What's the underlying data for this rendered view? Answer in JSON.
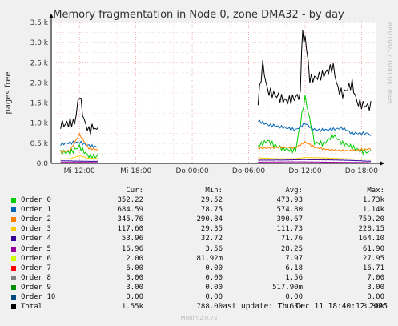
{
  "chart_data": {
    "type": "line",
    "title": "Memory fragmentation in Node 0, zone DMA32 - by day",
    "ylabel": "pages free",
    "side_label": "RRDTOOL / TOBI OETIKER",
    "ylim": [
      0,
      3500
    ],
    "y_ticks": [
      {
        "value": 0,
        "label": "0.0"
      },
      {
        "value": 500,
        "label": "0.5 k"
      },
      {
        "value": 1000,
        "label": "1.0 k"
      },
      {
        "value": 1500,
        "label": "1.5 k"
      },
      {
        "value": 2000,
        "label": "2.0 k"
      },
      {
        "value": 2500,
        "label": "2.5 k"
      },
      {
        "value": 3000,
        "label": "3.0 k"
      },
      {
        "value": 3500,
        "label": "3.5 k"
      }
    ],
    "xlim": [
      "Dec 10 09:00",
      "Dec 11 19:30"
    ],
    "x_ticks": [
      {
        "value": "Dec 10 12:00",
        "label": "Mi 12:00"
      },
      {
        "value": "Dec 10 18:00",
        "label": "Mi 18:00"
      },
      {
        "value": "Dec 11 00:00",
        "label": "Do 00:00"
      },
      {
        "value": "Dec 11 06:00",
        "label": "Do 06:00"
      },
      {
        "value": "Dec 11 12:00",
        "label": "Do 12:00"
      },
      {
        "value": "Dec 11 18:00",
        "label": "Do 18:00"
      }
    ],
    "gaps": [
      [
        "Dec 10 14:00",
        "Dec 11 07:00"
      ]
    ],
    "series": [
      {
        "name": "Order 0",
        "color": "#00cc00",
        "x": [
          "Dec 10 10:00",
          "Dec 10 11:00",
          "Dec 10 12:00",
          "Dec 10 13:00",
          "Dec 10 14:00",
          "Dec 11 07:00",
          "Dec 11 08:00",
          "Dec 11 09:00",
          "Dec 11 10:00",
          "Dec 11 11:00",
          "Dec 11 12:00",
          "Dec 11 13:00",
          "Dec 11 14:00",
          "Dec 11 15:00",
          "Dec 11 16:00",
          "Dec 11 17:00",
          "Dec 11 18:00",
          "Dec 11 19:00"
        ],
        "values": [
          250,
          300,
          500,
          280,
          260,
          400,
          600,
          500,
          450,
          420,
          1700,
          500,
          420,
          600,
          400,
          350,
          300,
          330
        ]
      },
      {
        "name": "Order 1",
        "color": "#0066b3",
        "x": [
          "Dec 10 10:00",
          "Dec 10 11:00",
          "Dec 10 12:00",
          "Dec 10 13:00",
          "Dec 10 14:00",
          "Dec 11 07:00",
          "Dec 11 08:00",
          "Dec 11 09:00",
          "Dec 11 10:00",
          "Dec 11 11:00",
          "Dec 11 12:00",
          "Dec 11 13:00",
          "Dec 11 14:00",
          "Dec 11 15:00",
          "Dec 11 16:00",
          "Dec 11 17:00",
          "Dec 11 18:00",
          "Dec 11 19:00"
        ],
        "values": [
          420,
          450,
          480,
          430,
          420,
          1000,
          900,
          880,
          870,
          860,
          1050,
          900,
          880,
          870,
          860,
          700,
          680,
          685
        ]
      },
      {
        "name": "Order 2",
        "color": "#ff8000",
        "x": [
          "Dec 10 10:00",
          "Dec 10 11:00",
          "Dec 10 12:00",
          "Dec 10 13:00",
          "Dec 10 14:00",
          "Dec 11 07:00",
          "Dec 11 08:00",
          "Dec 11 09:00",
          "Dec 11 10:00",
          "Dec 11 11:00",
          "Dec 11 12:00",
          "Dec 11 13:00",
          "Dec 11 14:00",
          "Dec 11 15:00",
          "Dec 11 16:00",
          "Dec 11 17:00",
          "Dec 11 18:00",
          "Dec 11 19:00"
        ],
        "values": [
          300,
          320,
          700,
          330,
          300,
          400,
          380,
          370,
          360,
          350,
          500,
          400,
          380,
          370,
          360,
          350,
          350,
          346
        ]
      },
      {
        "name": "Order 3",
        "color": "#ffcc00",
        "x": [
          "Dec 10 10:00",
          "Dec 10 11:00",
          "Dec 10 12:00",
          "Dec 10 13:00",
          "Dec 10 14:00",
          "Dec 11 07:00",
          "Dec 11 08:00",
          "Dec 11 09:00",
          "Dec 11 10:00",
          "Dec 11 11:00",
          "Dec 11 12:00",
          "Dec 11 13:00",
          "Dec 11 14:00",
          "Dec 11 15:00",
          "Dec 11 16:00",
          "Dec 11 17:00",
          "Dec 11 18:00",
          "Dec 11 19:00"
        ],
        "values": [
          120,
          130,
          200,
          130,
          120,
          150,
          140,
          130,
          120,
          115,
          140,
          130,
          125,
          120,
          118,
          120,
          118,
          118
        ]
      },
      {
        "name": "Order 4",
        "color": "#330099",
        "x": [
          "Dec 10 10:00",
          "Dec 10 14:00",
          "Dec 11 07:00",
          "Dec 11 12:00",
          "Dec 11 19:00"
        ],
        "values": [
          60,
          58,
          75,
          100,
          54
        ]
      },
      {
        "name": "Order 5",
        "color": "#990099",
        "x": [
          "Dec 10 10:00",
          "Dec 10 14:00",
          "Dec 11 07:00",
          "Dec 11 12:00",
          "Dec 11 19:00"
        ],
        "values": [
          25,
          22,
          30,
          40,
          17
        ]
      },
      {
        "name": "Order 6",
        "color": "#ccff00",
        "x": [
          "Dec 10 10:00",
          "Dec 10 14:00",
          "Dec 11 07:00",
          "Dec 11 12:00",
          "Dec 11 19:00"
        ],
        "values": [
          8,
          7,
          9,
          10,
          2
        ]
      },
      {
        "name": "Order 7",
        "color": "#ff0000",
        "x": [
          "Dec 10 10:00",
          "Dec 10 14:00",
          "Dec 11 07:00",
          "Dec 11 12:00",
          "Dec 11 19:00"
        ],
        "values": [
          6,
          6,
          7,
          8,
          6
        ]
      },
      {
        "name": "Order 8",
        "color": "#808080",
        "x": [
          "Dec 10 10:00",
          "Dec 10 14:00",
          "Dec 11 07:00",
          "Dec 11 12:00",
          "Dec 11 19:00"
        ],
        "values": [
          2,
          2,
          2,
          3,
          3
        ]
      },
      {
        "name": "Order 9",
        "color": "#008f00",
        "x": [
          "Dec 10 10:00",
          "Dec 10 14:00",
          "Dec 11 07:00",
          "Dec 11 12:00",
          "Dec 11 19:00"
        ],
        "values": [
          0.5,
          0.5,
          0.5,
          1,
          3
        ]
      },
      {
        "name": "Order 10",
        "color": "#00487d",
        "x": [
          "Dec 10 10:00",
          "Dec 10 14:00",
          "Dec 11 07:00",
          "Dec 11 12:00",
          "Dec 11 19:00"
        ],
        "values": [
          0,
          0,
          0,
          0,
          0
        ]
      },
      {
        "name": "Total",
        "color": "#000000",
        "x": [
          "Dec 10 10:00",
          "Dec 10 10:30",
          "Dec 10 11:00",
          "Dec 10 11:30",
          "Dec 10 12:00",
          "Dec 10 12:30",
          "Dec 10 13:00",
          "Dec 10 13:30",
          "Dec 10 14:00",
          "Dec 11 07:00",
          "Dec 11 07:30",
          "Dec 11 08:00",
          "Dec 11 09:00",
          "Dec 11 10:00",
          "Dec 11 11:00",
          "Dec 11 11:30",
          "Dec 11 11:45",
          "Dec 11 12:00",
          "Dec 11 12:30",
          "Dec 11 13:00",
          "Dec 11 14:00",
          "Dec 11 15:00",
          "Dec 11 15:30",
          "Dec 11 16:00",
          "Dec 11 17:00",
          "Dec 11 17:30",
          "Dec 11 18:00",
          "Dec 11 19:00"
        ],
        "values": [
          950,
          1000,
          1100,
          1150,
          1900,
          1250,
          1000,
          1100,
          900,
          1500,
          2500,
          1900,
          1850,
          1750,
          1800,
          1800,
          3300,
          3250,
          2100,
          2050,
          2050,
          2200,
          1650,
          1550,
          1900,
          1500,
          1500,
          1550
        ]
      }
    ]
  },
  "legend": {
    "headers": {
      "cur": "Cur:",
      "min": "Min:",
      "avg": "Avg:",
      "max": "Max:"
    },
    "rows": [
      {
        "name": "Order 0",
        "color": "#00cc00",
        "cur": "352.22",
        "min": "29.52",
        "avg": "473.93",
        "max": "1.73k"
      },
      {
        "name": "Order 1",
        "color": "#0066b3",
        "cur": "684.59",
        "min": "78.75",
        "avg": "574.80",
        "max": "1.14k"
      },
      {
        "name": "Order 2",
        "color": "#ff8000",
        "cur": "345.76",
        "min": "290.84",
        "avg": "390.67",
        "max": "759.20"
      },
      {
        "name": "Order 3",
        "color": "#ffcc00",
        "cur": "117.60",
        "min": "29.35",
        "avg": "111.73",
        "max": "228.15"
      },
      {
        "name": "Order 4",
        "color": "#330099",
        "cur": "53.96",
        "min": "32.72",
        "avg": "71.76",
        "max": "164.10"
      },
      {
        "name": "Order 5",
        "color": "#990099",
        "cur": "16.96",
        "min": "3.56",
        "avg": "28.25",
        "max": "61.90"
      },
      {
        "name": "Order 6",
        "color": "#ccff00",
        "cur": "2.00",
        "min": "81.92m",
        "avg": "7.97",
        "max": "27.95"
      },
      {
        "name": "Order 7",
        "color": "#ff0000",
        "cur": "6.00",
        "min": "0.00",
        "avg": "6.18",
        "max": "16.71"
      },
      {
        "name": "Order 8",
        "color": "#808080",
        "cur": "3.00",
        "min": "0.00",
        "avg": "1.56",
        "max": "7.00"
      },
      {
        "name": "Order 9",
        "color": "#008f00",
        "cur": "3.00",
        "min": "0.00",
        "avg": "517.90m",
        "max": "3.00"
      },
      {
        "name": "Order 10",
        "color": "#00487d",
        "cur": "0.00",
        "min": "0.00",
        "avg": "0.00",
        "max": "0.00"
      },
      {
        "name": "Total",
        "color": "#000000",
        "cur": "1.55k",
        "min": "788.00",
        "avg": "1.63k",
        "max": "3.30k"
      }
    ]
  },
  "last_update": "Last update: Thu Dec 11 18:40:12 2025",
  "footer": "Munin 2.0.73"
}
